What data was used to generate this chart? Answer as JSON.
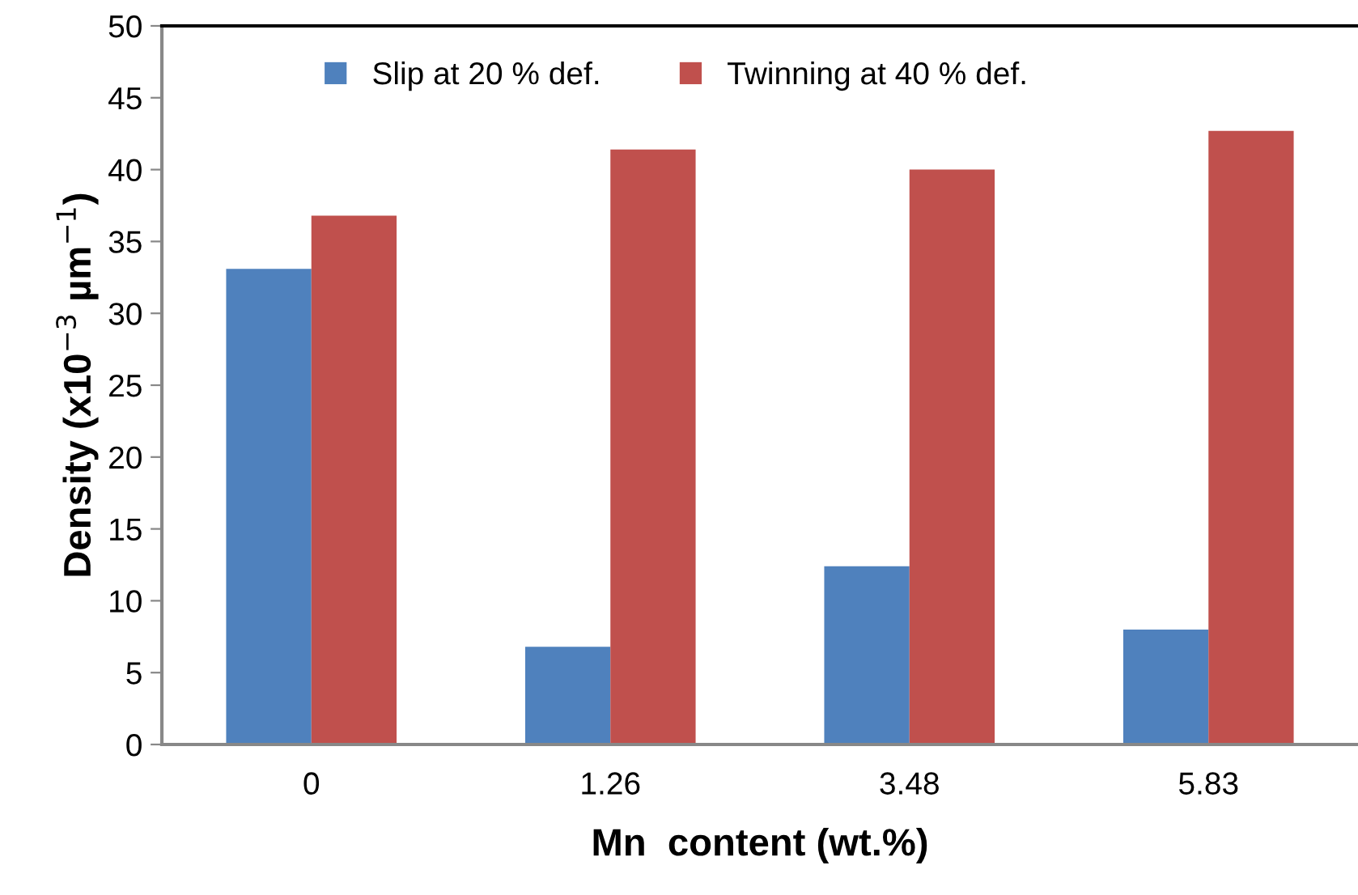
{
  "chart_data": {
    "type": "bar",
    "xlabel": "Mn  content (wt.%)",
    "ylabel": "Density (x10$^{−3}$ µm$^{−1}$)",
    "categories": [
      "0",
      "1.26",
      "3.48",
      "5.83"
    ],
    "series": [
      {
        "name": "Slip at 20 % def.",
        "color": "#4f81bd",
        "values": [
          33.1,
          6.8,
          12.4,
          8.0
        ]
      },
      {
        "name": "Twinning at 40 % def.",
        "color": "#c0504d",
        "values": [
          36.8,
          41.4,
          40.0,
          42.7
        ]
      }
    ],
    "ylim": [
      0,
      50
    ],
    "yticks": [
      0,
      5,
      10,
      15,
      20,
      25,
      30,
      35,
      40,
      45,
      50
    ],
    "grid": false,
    "legend": "top"
  }
}
